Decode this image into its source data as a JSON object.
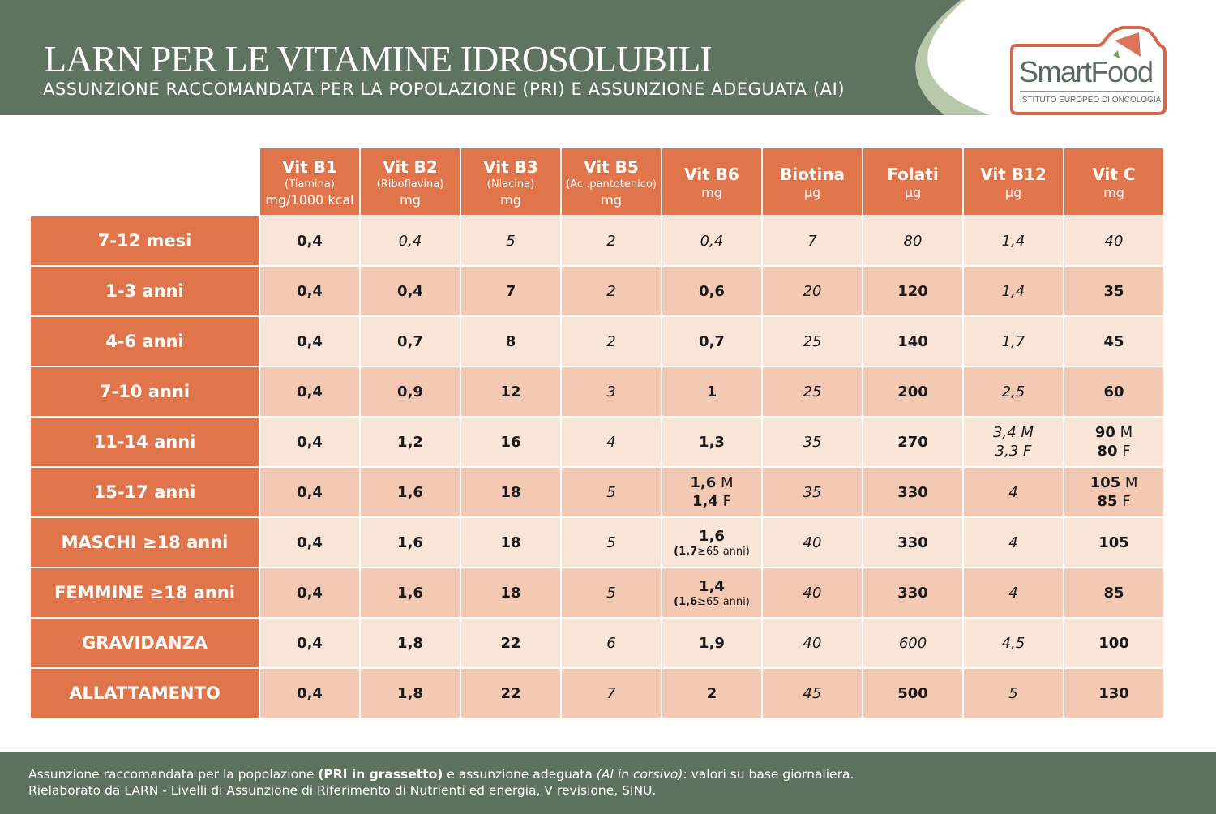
{
  "header": {
    "title": "LARN PER LE VITAMINE IDROSOLUBILI",
    "subtitle": "ASSUNZIONE RACCOMANDATA PER LA POPOLAZIONE (PRI) E ASSUNZIONE ADEGUATA (AI)"
  },
  "logo": {
    "name": "SmartFood",
    "tagline": "ISTITUTO EUROPEO DI ONCOLOGIA",
    "registered": "®"
  },
  "colors": {
    "header_green": "#5e7360",
    "accent_orange": "#e0744b",
    "row_light": "#f9e4d8",
    "row_dark": "#f4c9b3",
    "light_green": "#b7c8ab"
  },
  "columns": [
    {
      "name": "Vit B1",
      "extra": "(Tiamina)",
      "unit": "mg/1000 kcal"
    },
    {
      "name": "Vit B2",
      "extra": "(Riboflavina)",
      "unit": "mg"
    },
    {
      "name": "Vit B3",
      "extra": "(Niacina)",
      "unit": "mg"
    },
    {
      "name": "Vit B5",
      "extra": "(Ac .pantotenico)",
      "unit": "mg"
    },
    {
      "name": "Vit B6",
      "extra": "",
      "unit": "mg"
    },
    {
      "name": "Biotina",
      "extra": "",
      "unit": "µg"
    },
    {
      "name": "Folati",
      "extra": "",
      "unit": "µg"
    },
    {
      "name": "Vit B12",
      "extra": "",
      "unit": "µg"
    },
    {
      "name": "Vit C",
      "extra": "",
      "unit": "mg"
    }
  ],
  "rows": [
    {
      "label": "7-12 mesi",
      "cells": [
        {
          "s": "pri",
          "l": [
            [
              "0,4"
            ]
          ]
        },
        {
          "s": "ai",
          "l": [
            [
              "0,4"
            ]
          ]
        },
        {
          "s": "ai",
          "l": [
            [
              "5"
            ]
          ]
        },
        {
          "s": "ai",
          "l": [
            [
              "2"
            ]
          ]
        },
        {
          "s": "ai",
          "l": [
            [
              "0,4"
            ]
          ]
        },
        {
          "s": "ai",
          "l": [
            [
              "7"
            ]
          ]
        },
        {
          "s": "ai",
          "l": [
            [
              "80"
            ]
          ]
        },
        {
          "s": "ai",
          "l": [
            [
              "1,4"
            ]
          ]
        },
        {
          "s": "ai",
          "l": [
            [
              "40"
            ]
          ]
        }
      ]
    },
    {
      "label": "1-3 anni",
      "cells": [
        {
          "s": "pri",
          "l": [
            [
              "0,4"
            ]
          ]
        },
        {
          "s": "pri",
          "l": [
            [
              "0,4"
            ]
          ]
        },
        {
          "s": "pri",
          "l": [
            [
              "7"
            ]
          ]
        },
        {
          "s": "ai",
          "l": [
            [
              "2"
            ]
          ]
        },
        {
          "s": "pri",
          "l": [
            [
              "0,6"
            ]
          ]
        },
        {
          "s": "ai",
          "l": [
            [
              "20"
            ]
          ]
        },
        {
          "s": "pri",
          "l": [
            [
              "120"
            ]
          ]
        },
        {
          "s": "ai",
          "l": [
            [
              "1,4"
            ]
          ]
        },
        {
          "s": "pri",
          "l": [
            [
              "35"
            ]
          ]
        }
      ]
    },
    {
      "label": "4-6 anni",
      "cells": [
        {
          "s": "pri",
          "l": [
            [
              "0,4"
            ]
          ]
        },
        {
          "s": "pri",
          "l": [
            [
              "0,7"
            ]
          ]
        },
        {
          "s": "pri",
          "l": [
            [
              "8"
            ]
          ]
        },
        {
          "s": "ai",
          "l": [
            [
              "2"
            ]
          ]
        },
        {
          "s": "pri",
          "l": [
            [
              "0,7"
            ]
          ]
        },
        {
          "s": "ai",
          "l": [
            [
              "25"
            ]
          ]
        },
        {
          "s": "pri",
          "l": [
            [
              "140"
            ]
          ]
        },
        {
          "s": "ai",
          "l": [
            [
              "1,7"
            ]
          ]
        },
        {
          "s": "pri",
          "l": [
            [
              "45"
            ]
          ]
        }
      ]
    },
    {
      "label": "7-10 anni",
      "cells": [
        {
          "s": "pri",
          "l": [
            [
              "0,4"
            ]
          ]
        },
        {
          "s": "pri",
          "l": [
            [
              "0,9"
            ]
          ]
        },
        {
          "s": "pri",
          "l": [
            [
              "12"
            ]
          ]
        },
        {
          "s": "ai",
          "l": [
            [
              "3"
            ]
          ]
        },
        {
          "s": "pri",
          "l": [
            [
              "1"
            ]
          ]
        },
        {
          "s": "ai",
          "l": [
            [
              "25"
            ]
          ]
        },
        {
          "s": "pri",
          "l": [
            [
              "200"
            ]
          ]
        },
        {
          "s": "ai",
          "l": [
            [
              "2,5"
            ]
          ]
        },
        {
          "s": "pri",
          "l": [
            [
              "60"
            ]
          ]
        }
      ]
    },
    {
      "label": "11-14 anni",
      "cells": [
        {
          "s": "pri",
          "l": [
            [
              "0,4"
            ]
          ]
        },
        {
          "s": "pri",
          "l": [
            [
              "1,2"
            ]
          ]
        },
        {
          "s": "pri",
          "l": [
            [
              "16"
            ]
          ]
        },
        {
          "s": "ai",
          "l": [
            [
              "4"
            ]
          ]
        },
        {
          "s": "pri",
          "l": [
            [
              "1,3"
            ]
          ]
        },
        {
          "s": "ai",
          "l": [
            [
              "35"
            ]
          ]
        },
        {
          "s": "pri",
          "l": [
            [
              "270"
            ]
          ]
        },
        {
          "s": "ai",
          "l": [
            [
              "3,4 M"
            ],
            [
              "3,3 F"
            ]
          ]
        },
        {
          "s": "pri",
          "l": [
            [
              "90",
              " M"
            ],
            [
              "80",
              " F"
            ]
          ]
        }
      ]
    },
    {
      "label": "15-17 anni",
      "cells": [
        {
          "s": "pri",
          "l": [
            [
              "0,4"
            ]
          ]
        },
        {
          "s": "pri",
          "l": [
            [
              "1,6"
            ]
          ]
        },
        {
          "s": "pri",
          "l": [
            [
              "18"
            ]
          ]
        },
        {
          "s": "ai",
          "l": [
            [
              "5"
            ]
          ]
        },
        {
          "s": "pri",
          "l": [
            [
              "1,6",
              " M"
            ],
            [
              "1,4",
              " F"
            ]
          ]
        },
        {
          "s": "ai",
          "l": [
            [
              "35"
            ]
          ]
        },
        {
          "s": "pri",
          "l": [
            [
              "330"
            ]
          ]
        },
        {
          "s": "ai",
          "l": [
            [
              "4"
            ]
          ]
        },
        {
          "s": "pri",
          "l": [
            [
              "105",
              " M"
            ],
            [
              "85",
              " F"
            ]
          ]
        }
      ]
    },
    {
      "label": "MASCHI ≥18 anni",
      "cells": [
        {
          "s": "pri",
          "l": [
            [
              "0,4"
            ]
          ]
        },
        {
          "s": "pri",
          "l": [
            [
              "1,6"
            ]
          ]
        },
        {
          "s": "pri",
          "l": [
            [
              "18"
            ]
          ]
        },
        {
          "s": "ai",
          "l": [
            [
              "5"
            ]
          ]
        },
        {
          "s": "pri",
          "l": [
            [
              "1,6"
            ]
          ],
          "note": [
            "(1,7",
            "≥65 anni)"
          ]
        },
        {
          "s": "ai",
          "l": [
            [
              "40"
            ]
          ]
        },
        {
          "s": "pri",
          "l": [
            [
              "330"
            ]
          ]
        },
        {
          "s": "ai",
          "l": [
            [
              "4"
            ]
          ]
        },
        {
          "s": "pri",
          "l": [
            [
              "105"
            ]
          ]
        }
      ]
    },
    {
      "label": "FEMMINE ≥18 anni",
      "cells": [
        {
          "s": "pri",
          "l": [
            [
              "0,4"
            ]
          ]
        },
        {
          "s": "pri",
          "l": [
            [
              "1,6"
            ]
          ]
        },
        {
          "s": "pri",
          "l": [
            [
              "18"
            ]
          ]
        },
        {
          "s": "ai",
          "l": [
            [
              "5"
            ]
          ]
        },
        {
          "s": "pri",
          "l": [
            [
              "1,4"
            ]
          ],
          "note": [
            "(1,6",
            "≥65 anni)"
          ]
        },
        {
          "s": "ai",
          "l": [
            [
              "40"
            ]
          ]
        },
        {
          "s": "pri",
          "l": [
            [
              "330"
            ]
          ]
        },
        {
          "s": "ai",
          "l": [
            [
              "4"
            ]
          ]
        },
        {
          "s": "pri",
          "l": [
            [
              "85"
            ]
          ]
        }
      ]
    },
    {
      "label": "GRAVIDANZA",
      "cells": [
        {
          "s": "pri",
          "l": [
            [
              "0,4"
            ]
          ]
        },
        {
          "s": "pri",
          "l": [
            [
              "1,8"
            ]
          ]
        },
        {
          "s": "pri",
          "l": [
            [
              "22"
            ]
          ]
        },
        {
          "s": "ai",
          "l": [
            [
              "6"
            ]
          ]
        },
        {
          "s": "pri",
          "l": [
            [
              "1,9"
            ]
          ]
        },
        {
          "s": "ai",
          "l": [
            [
              "40"
            ]
          ]
        },
        {
          "s": "ai",
          "l": [
            [
              "600"
            ]
          ]
        },
        {
          "s": "ai",
          "l": [
            [
              "4,5"
            ]
          ]
        },
        {
          "s": "pri",
          "l": [
            [
              "100"
            ]
          ]
        }
      ]
    },
    {
      "label": "ALLATTAMENTO",
      "cells": [
        {
          "s": "pri",
          "l": [
            [
              "0,4"
            ]
          ]
        },
        {
          "s": "pri",
          "l": [
            [
              "1,8"
            ]
          ]
        },
        {
          "s": "pri",
          "l": [
            [
              "22"
            ]
          ]
        },
        {
          "s": "ai",
          "l": [
            [
              "7"
            ]
          ]
        },
        {
          "s": "pri",
          "l": [
            [
              "2"
            ]
          ]
        },
        {
          "s": "ai",
          "l": [
            [
              "45"
            ]
          ]
        },
        {
          "s": "pri",
          "l": [
            [
              "500"
            ]
          ]
        },
        {
          "s": "ai",
          "l": [
            [
              "5"
            ]
          ]
        },
        {
          "s": "pri",
          "l": [
            [
              "130"
            ]
          ]
        }
      ]
    }
  ],
  "footer": {
    "line1_a": "Assunzione raccomandata per la popolazione ",
    "line1_b": "(PRI in grassetto)",
    "line1_c": " e assunzione adeguata ",
    "line1_d": "(AI in corsivo)",
    "line1_e": ": valori su base giornaliera.",
    "line2": "Rielaborato da LARN - Livelli di Assunzione di Riferimento di Nutrienti ed energia, V revisione, SINU."
  }
}
